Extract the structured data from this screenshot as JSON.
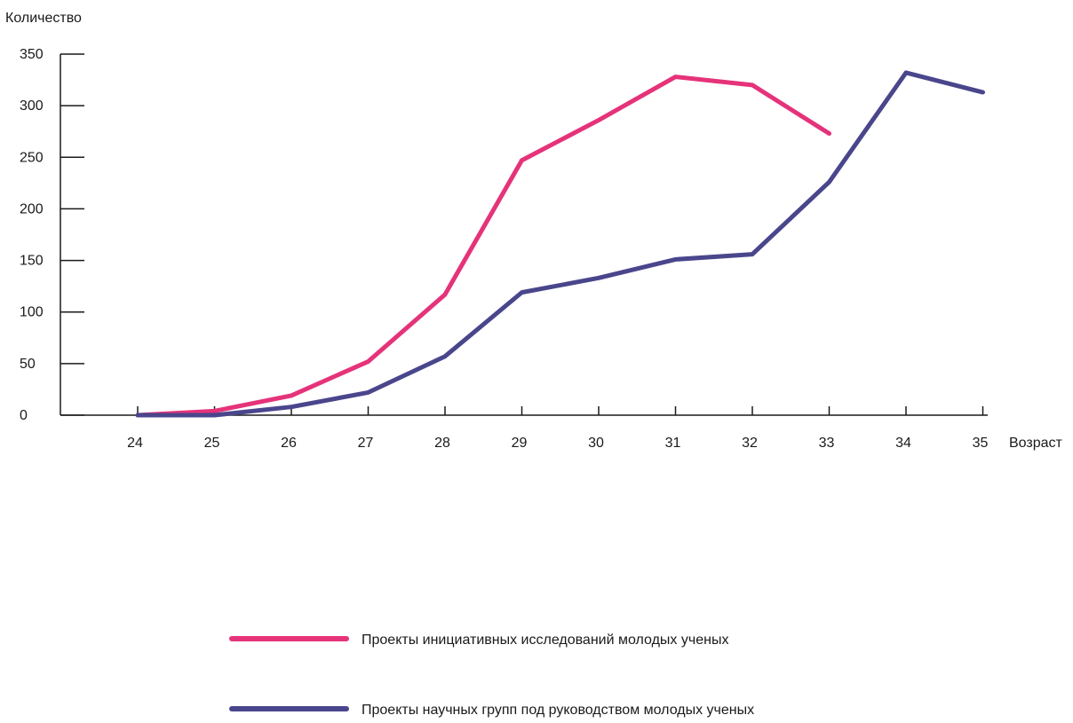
{
  "chart_data": {
    "type": "line",
    "title": "",
    "xlabel": "Возраст",
    "ylabel": "Количество",
    "x": [
      24,
      25,
      26,
      27,
      28,
      29,
      30,
      31,
      32,
      33,
      34,
      35
    ],
    "x_tick_labels": [
      "24",
      "25",
      "26",
      "27",
      "28",
      "29",
      "30",
      "31",
      "32",
      "33",
      "34",
      "35"
    ],
    "ylim": [
      0,
      350
    ],
    "y_ticks": [
      0,
      50,
      100,
      150,
      200,
      250,
      300,
      350
    ],
    "y_tick_labels": [
      "0",
      "50",
      "100",
      "150",
      "200",
      "250",
      "300",
      "350"
    ],
    "grid": false,
    "legend_position": "bottom-center",
    "series": [
      {
        "name": "Проекты инициативных исследований молодых ученых",
        "color": "#e5337a",
        "values": [
          0,
          4,
          19,
          52,
          117,
          247,
          286,
          328,
          320,
          273,
          null,
          null
        ]
      },
      {
        "name": "Проекты научных групп под руководством молодых ученых",
        "color": "#4a468c",
        "values": [
          0,
          0,
          8,
          22,
          57,
          119,
          133,
          151,
          156,
          226,
          332,
          313
        ]
      }
    ]
  }
}
